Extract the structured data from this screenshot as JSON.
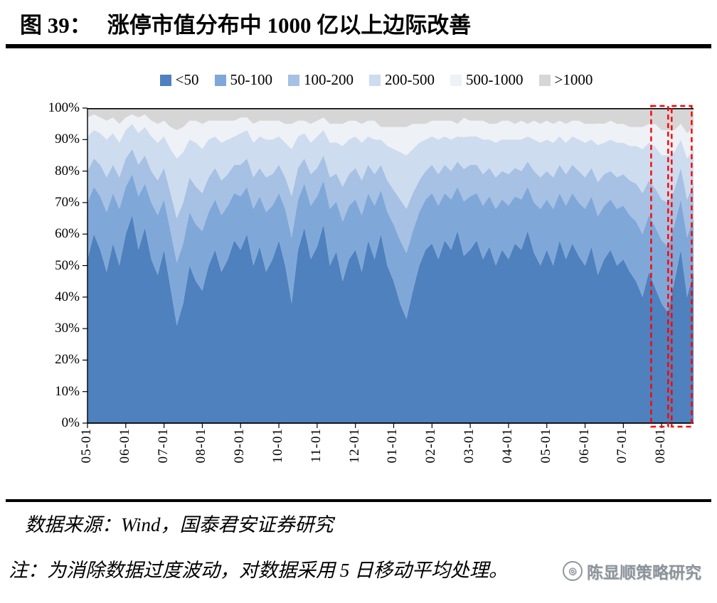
{
  "figure": {
    "label": "图 39：",
    "title": "涨停市值分布中 1000 亿以上边际改善"
  },
  "chart_data": {
    "type": "area",
    "stacked": true,
    "normalized_percent": true,
    "title": "涨停市值分布中 1000 亿以上边际改善",
    "ylim": [
      0,
      100
    ],
    "y_ticks": [
      "100%",
      "90%",
      "80%",
      "70%",
      "60%",
      "50%",
      "40%",
      "30%",
      "20%",
      "10%",
      "0%"
    ],
    "x_tick_labels": [
      "05-01",
      "06-01",
      "07-01",
      "08-01",
      "09-01",
      "10-01",
      "11-01",
      "12-01",
      "01-01",
      "02-01",
      "03-01",
      "04-01",
      "05-01",
      "06-01",
      "07-01",
      "08-01"
    ],
    "x_tick_indices": [
      0,
      6,
      12,
      18,
      24,
      30,
      36,
      42,
      48,
      54,
      60,
      66,
      72,
      78,
      84,
      90
    ],
    "legend_position": "top",
    "grid": false,
    "series": [
      {
        "name": "<50",
        "color": "#4E81BD",
        "values": [
          52,
          60,
          55,
          48,
          57,
          50,
          60,
          66,
          55,
          62,
          52,
          47,
          55,
          43,
          31,
          38,
          50,
          45,
          42,
          50,
          55,
          48,
          52,
          58,
          55,
          60,
          50,
          56,
          48,
          52,
          58,
          50,
          38,
          55,
          62,
          52,
          56,
          63,
          50,
          55,
          45,
          52,
          55,
          48,
          58,
          52,
          60,
          50,
          45,
          38,
          33,
          42,
          50,
          55,
          57,
          52,
          58,
          55,
          61,
          52,
          55,
          58,
          52,
          56,
          50,
          55,
          52,
          57,
          55,
          61,
          54,
          50,
          55,
          50,
          58,
          52,
          57,
          53,
          50,
          56,
          48,
          52,
          55,
          50,
          52,
          48,
          45,
          40,
          48,
          42,
          38,
          35,
          45,
          55,
          40,
          48
        ]
      },
      {
        "name": "50-100",
        "color": "#7FA8D9",
        "values": [
          18,
          15,
          17,
          19,
          16,
          18,
          15,
          13,
          17,
          14,
          18,
          19,
          16,
          18,
          20,
          19,
          17,
          18,
          19,
          17,
          16,
          18,
          17,
          15,
          17,
          15,
          18,
          16,
          19,
          17,
          15,
          18,
          21,
          16,
          14,
          17,
          16,
          14,
          18,
          16,
          19,
          17,
          16,
          18,
          15,
          17,
          14,
          17,
          18,
          20,
          21,
          19,
          17,
          16,
          16,
          17,
          15,
          16,
          14,
          17,
          17,
          15,
          17,
          16,
          18,
          16,
          17,
          15,
          16,
          14,
          16,
          18,
          16,
          18,
          15,
          17,
          16,
          17,
          18,
          16,
          19,
          17,
          16,
          18,
          17,
          18,
          19,
          20,
          18,
          19,
          20,
          21,
          18,
          16,
          19,
          17
        ]
      },
      {
        "name": "100-200",
        "color": "#A6C1E3",
        "values": [
          10,
          9,
          10,
          11,
          9,
          10,
          9,
          8,
          10,
          9,
          10,
          11,
          10,
          12,
          14,
          13,
          11,
          12,
          12,
          11,
          10,
          11,
          10,
          9,
          10,
          9,
          10,
          9,
          11,
          10,
          9,
          10,
          13,
          10,
          8,
          10,
          9,
          8,
          10,
          9,
          11,
          10,
          10,
          11,
          9,
          10,
          8,
          10,
          11,
          13,
          14,
          12,
          10,
          9,
          9,
          10,
          9,
          9,
          8,
          10,
          10,
          9,
          10,
          9,
          10,
          9,
          10,
          9,
          9,
          8,
          10,
          10,
          9,
          10,
          9,
          10,
          9,
          10,
          10,
          9,
          11,
          10,
          9,
          10,
          10,
          11,
          12,
          13,
          11,
          12,
          13,
          14,
          11,
          10,
          12,
          11
        ]
      },
      {
        "name": "200-500",
        "color": "#CDDCEF",
        "values": [
          11,
          9,
          10,
          12,
          10,
          11,
          9,
          8,
          10,
          9,
          11,
          12,
          10,
          14,
          19,
          16,
          12,
          14,
          14,
          12,
          10,
          12,
          11,
          9,
          10,
          9,
          11,
          10,
          12,
          11,
          9,
          11,
          15,
          10,
          8,
          10,
          10,
          8,
          11,
          10,
          13,
          11,
          10,
          12,
          9,
          11,
          8,
          11,
          13,
          15,
          17,
          14,
          12,
          10,
          9,
          11,
          9,
          10,
          8,
          10,
          9,
          9,
          11,
          9,
          11,
          10,
          11,
          9,
          10,
          8,
          10,
          11,
          10,
          11,
          9,
          10,
          9,
          10,
          11,
          9,
          12,
          10,
          10,
          11,
          10,
          11,
          12,
          14,
          12,
          13,
          14,
          15,
          12,
          9,
          13,
          11
        ]
      },
      {
        "name": "500-1000",
        "color": "#EEF1F6",
        "values": [
          6,
          5,
          5,
          6,
          5,
          6,
          4,
          3,
          5,
          4,
          5,
          6,
          5,
          7,
          9,
          8,
          6,
          7,
          8,
          6,
          5,
          7,
          6,
          5,
          5,
          4,
          6,
          5,
          6,
          6,
          5,
          6,
          8,
          5,
          4,
          6,
          5,
          4,
          6,
          6,
          7,
          6,
          5,
          6,
          5,
          6,
          4,
          6,
          7,
          8,
          9,
          8,
          6,
          5,
          5,
          6,
          5,
          6,
          4,
          6,
          5,
          5,
          6,
          5,
          6,
          6,
          6,
          5,
          6,
          4,
          6,
          6,
          6,
          6,
          5,
          6,
          5,
          6,
          6,
          5,
          7,
          6,
          6,
          6,
          6,
          6,
          6,
          7,
          6,
          7,
          8,
          8,
          7,
          5,
          8,
          7
        ]
      },
      {
        "name": ">1000",
        "color": "#D6D6D6",
        "values": [
          3,
          2,
          3,
          4,
          3,
          5,
          3,
          2,
          3,
          2,
          4,
          5,
          4,
          6,
          7,
          6,
          4,
          4,
          5,
          4,
          4,
          4,
          4,
          4,
          3,
          3,
          5,
          4,
          4,
          4,
          4,
          5,
          5,
          4,
          4,
          5,
          4,
          3,
          5,
          5,
          5,
          4,
          4,
          5,
          4,
          4,
          6,
          6,
          6,
          6,
          6,
          5,
          5,
          5,
          4,
          4,
          4,
          4,
          5,
          3,
          4,
          4,
          4,
          5,
          5,
          4,
          4,
          5,
          4,
          5,
          4,
          5,
          4,
          5,
          4,
          5,
          4,
          4,
          5,
          5,
          5,
          5,
          4,
          5,
          5,
          6,
          6,
          6,
          5,
          5,
          7,
          7,
          7,
          5,
          8,
          6
        ]
      }
    ],
    "highlight_boxes": [
      {
        "x0": 0.93,
        "x1": 0.958
      },
      {
        "x0": 0.964,
        "x1": 0.997
      }
    ],
    "highlight_color": "#FF0000"
  },
  "footer": {
    "source": "数据来源：Wind，国泰君安证券研究",
    "note": "注：为消除数据过度波动，对数据采用 5 日移动平均处理。",
    "watermark": "陈显顺策略研究",
    "watermark_glyph": "◎"
  }
}
